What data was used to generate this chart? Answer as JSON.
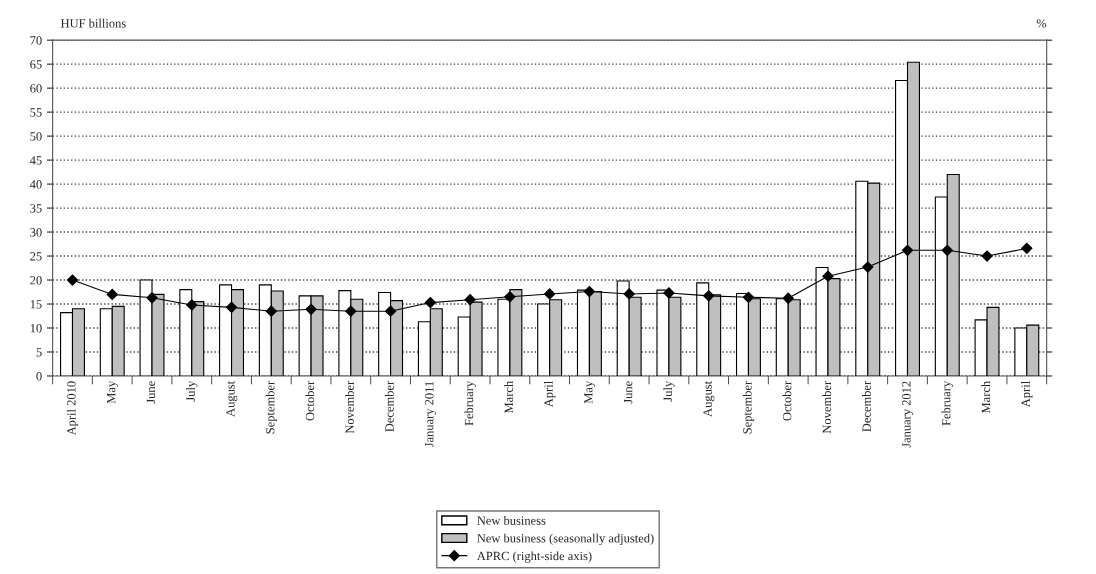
{
  "chart_data": {
    "type": "bar",
    "ylabel": "HUF billions",
    "y2label": "%",
    "categories": [
      "April 2010",
      "May",
      "June",
      "July",
      "August",
      "September",
      "October",
      "November",
      "December",
      "January 2011",
      "February",
      "March",
      "April",
      "May",
      "June",
      "July",
      "August",
      "September",
      "October",
      "November",
      "December",
      "January 2012",
      "February",
      "March",
      "April"
    ],
    "series": [
      {
        "name": "New business",
        "color": "#ffffff",
        "values": [
          13.2,
          14,
          20,
          18,
          19,
          19,
          16.7,
          17.8,
          17.4,
          11.3,
          12.3,
          16,
          15,
          17.9,
          19.8,
          17.9,
          19.4,
          17.2,
          16.1,
          22.6,
          40.6,
          61.6,
          37.3,
          11.7,
          10
        ]
      },
      {
        "name": "New business (seasonally adjusted)",
        "color": "#bfbfbf",
        "values": [
          14,
          14.5,
          17,
          15.5,
          18,
          17.7,
          16.7,
          16,
          15.7,
          14,
          15.4,
          18,
          15.9,
          17.6,
          16.4,
          16.4,
          16.9,
          16.1,
          15.9,
          20.3,
          40.2,
          65.4,
          42,
          14.3,
          10.6
        ]
      },
      {
        "name": "APRC (right-side axis)",
        "type": "line",
        "color": "#000000",
        "marker": "diamond",
        "values": [
          20,
          17,
          16.3,
          14.8,
          14.3,
          13.5,
          13.9,
          13.5,
          13.5,
          15.3,
          15.9,
          16.5,
          17.1,
          17.6,
          17.1,
          17.3,
          16.7,
          16.4,
          16.2,
          20.8,
          22.7,
          26.2,
          26.2,
          25,
          26.6
        ]
      }
    ],
    "ylim": [
      0,
      70
    ],
    "yticks": [
      0,
      5,
      10,
      15,
      20,
      25,
      30,
      35,
      40,
      45,
      50,
      55,
      60,
      65,
      70
    ],
    "grid": "y",
    "legend": "bottom"
  }
}
